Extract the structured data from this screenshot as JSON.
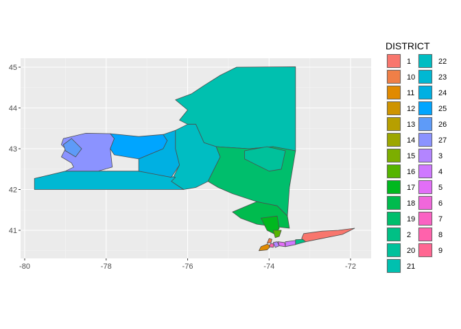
{
  "chart_data": {
    "type": "map",
    "legend": {
      "title": "DISTRICT",
      "placement": "right",
      "columns": 2,
      "entries": [
        {
          "label": "1",
          "color": "#F8766D"
        },
        {
          "label": "10",
          "color": "#EF7F47"
        },
        {
          "label": "11",
          "color": "#E18A00"
        },
        {
          "label": "12",
          "color": "#CE9400"
        },
        {
          "label": "13",
          "color": "#B79F00"
        },
        {
          "label": "14",
          "color": "#9CA700"
        },
        {
          "label": "15",
          "color": "#7CAE00"
        },
        {
          "label": "16",
          "color": "#55B400"
        },
        {
          "label": "17",
          "color": "#00B81F"
        },
        {
          "label": "18",
          "color": "#00BB4E"
        },
        {
          "label": "19",
          "color": "#00BE6C"
        },
        {
          "label": "2",
          "color": "#00C085"
        },
        {
          "label": "20",
          "color": "#00C19B"
        },
        {
          "label": "21",
          "color": "#00C0AF"
        },
        {
          "label": "22",
          "color": "#00BDC2"
        },
        {
          "label": "23",
          "color": "#00B8D3"
        },
        {
          "label": "24",
          "color": "#00B0E2"
        },
        {
          "label": "25",
          "color": "#00A5FF"
        },
        {
          "label": "26",
          "color": "#5E9BF8"
        },
        {
          "label": "27",
          "color": "#8B93FF"
        },
        {
          "label": "3",
          "color": "#B385FF"
        },
        {
          "label": "4",
          "color": "#CF78FF"
        },
        {
          "label": "5",
          "color": "#E26EF7"
        },
        {
          "label": "6",
          "color": "#F067DB"
        },
        {
          "label": "7",
          "color": "#FA62C3"
        },
        {
          "label": "8",
          "color": "#FF62AC"
        },
        {
          "label": "9",
          "color": "#FF6692"
        }
      ]
    },
    "x_ticks": [
      -80,
      -78,
      -76,
      -74,
      -72
    ],
    "y_ticks": [
      41,
      42,
      43,
      44,
      45
    ],
    "xlim": [
      -80.2,
      -71.5
    ],
    "ylim": [
      40.35,
      45.15
    ],
    "grid": true,
    "districts": [
      {
        "district": "21",
        "color": "#00C0AF",
        "coords": [
          [
            -76.2,
            43.7
          ],
          [
            -76.0,
            43.95
          ],
          [
            -76.3,
            44.2
          ],
          [
            -75.9,
            44.35
          ],
          [
            -75.6,
            44.55
          ],
          [
            -75.2,
            44.8
          ],
          [
            -74.8,
            45.0
          ],
          [
            -73.35,
            45.01
          ],
          [
            -73.35,
            42.95
          ],
          [
            -73.9,
            43.05
          ],
          [
            -74.5,
            43.0
          ],
          [
            -75.3,
            43.05
          ],
          [
            -75.6,
            43.15
          ],
          [
            -75.8,
            43.6
          ],
          [
            -76.0,
            43.6
          ]
        ]
      },
      {
        "district": "22",
        "color": "#00BDC2",
        "coords": [
          [
            -76.3,
            43.45
          ],
          [
            -76.0,
            43.6
          ],
          [
            -75.8,
            43.6
          ],
          [
            -75.6,
            43.15
          ],
          [
            -75.3,
            43.05
          ],
          [
            -75.2,
            42.8
          ],
          [
            -75.5,
            42.2
          ],
          [
            -75.8,
            42.05
          ],
          [
            -76.1,
            42.0
          ],
          [
            -76.4,
            42.2
          ],
          [
            -76.2,
            42.6
          ],
          [
            -76.3,
            43.0
          ]
        ]
      },
      {
        "district": "19",
        "color": "#00BE6C",
        "coords": [
          [
            -75.3,
            43.05
          ],
          [
            -74.5,
            43.0
          ],
          [
            -73.9,
            43.05
          ],
          [
            -73.35,
            42.95
          ],
          [
            -73.5,
            42.05
          ],
          [
            -73.55,
            41.35
          ],
          [
            -73.8,
            41.6
          ],
          [
            -74.3,
            41.7
          ],
          [
            -74.9,
            41.9
          ],
          [
            -75.25,
            42.05
          ],
          [
            -75.5,
            42.2
          ],
          [
            -75.2,
            42.8
          ]
        ]
      },
      {
        "district": "20",
        "color": "#00C19B",
        "coords": [
          [
            -74.6,
            42.95
          ],
          [
            -74.05,
            43.05
          ],
          [
            -73.6,
            42.95
          ],
          [
            -73.7,
            42.5
          ],
          [
            -74.0,
            42.45
          ],
          [
            -74.3,
            42.6
          ],
          [
            -74.6,
            42.75
          ]
        ]
      },
      {
        "district": "18",
        "color": "#00BB4E",
        "coords": [
          [
            -74.9,
            41.45
          ],
          [
            -74.3,
            41.7
          ],
          [
            -73.8,
            41.6
          ],
          [
            -73.55,
            41.35
          ],
          [
            -73.5,
            41.05
          ],
          [
            -73.95,
            41.1
          ],
          [
            -74.3,
            41.15
          ],
          [
            -74.7,
            41.3
          ]
        ]
      },
      {
        "district": "17",
        "color": "#00B81F",
        "coords": [
          [
            -74.2,
            41.3
          ],
          [
            -73.8,
            41.35
          ],
          [
            -73.75,
            41.05
          ],
          [
            -73.85,
            40.9
          ],
          [
            -74.05,
            41.0
          ]
        ]
      },
      {
        "district": "16",
        "color": "#55B400",
        "coords": [
          [
            -73.9,
            41.0
          ],
          [
            -73.7,
            41.0
          ],
          [
            -73.75,
            40.85
          ],
          [
            -73.85,
            40.82
          ]
        ]
      },
      {
        "district": "11",
        "color": "#E18A00",
        "coords": [
          [
            -74.25,
            40.5
          ],
          [
            -74.05,
            40.52
          ],
          [
            -73.95,
            40.62
          ],
          [
            -74.05,
            40.66
          ],
          [
            -74.2,
            40.6
          ]
        ]
      },
      {
        "district": "10",
        "color": "#EF7F47",
        "coords": [
          [
            -74.05,
            40.68
          ],
          [
            -73.95,
            40.7
          ],
          [
            -73.93,
            40.78
          ],
          [
            -74.0,
            40.8
          ]
        ]
      },
      {
        "district": "8",
        "color": "#FF62AC",
        "coords": [
          [
            -74.0,
            40.6
          ],
          [
            -73.9,
            40.58
          ],
          [
            -73.88,
            40.66
          ],
          [
            -73.96,
            40.68
          ]
        ]
      },
      {
        "district": "3",
        "color": "#B385FF",
        "coords": [
          [
            -73.85,
            40.58
          ],
          [
            -73.75,
            40.62
          ],
          [
            -73.8,
            40.72
          ],
          [
            -73.9,
            40.7
          ]
        ]
      },
      {
        "district": "5",
        "color": "#E26EF7",
        "coords": [
          [
            -73.75,
            40.62
          ],
          [
            -73.6,
            40.6
          ],
          [
            -73.62,
            40.7
          ],
          [
            -73.78,
            40.72
          ]
        ]
      },
      {
        "district": "4",
        "color": "#CF78FF",
        "coords": [
          [
            -73.6,
            40.6
          ],
          [
            -73.35,
            40.65
          ],
          [
            -73.35,
            40.75
          ],
          [
            -73.6,
            40.72
          ]
        ]
      },
      {
        "district": "2",
        "color": "#00C085",
        "coords": [
          [
            -73.35,
            40.65
          ],
          [
            -73.1,
            40.72
          ],
          [
            -73.15,
            40.78
          ],
          [
            -73.35,
            40.77
          ]
        ]
      },
      {
        "district": "1",
        "color": "#F8766D",
        "coords": [
          [
            -73.1,
            40.72
          ],
          [
            -72.6,
            40.82
          ],
          [
            -72.2,
            40.9
          ],
          [
            -71.9,
            41.05
          ],
          [
            -72.3,
            41.0
          ],
          [
            -72.7,
            40.98
          ],
          [
            -73.15,
            40.92
          ],
          [
            -73.2,
            40.8
          ]
        ]
      },
      {
        "district": "23",
        "color": "#00B8D3",
        "coords": [
          [
            -79.76,
            42.0
          ],
          [
            -76.1,
            42.0
          ],
          [
            -76.4,
            42.2
          ],
          [
            -76.3,
            42.3
          ],
          [
            -77.2,
            42.45
          ],
          [
            -77.8,
            42.45
          ],
          [
            -78.2,
            42.45
          ],
          [
            -79.0,
            42.45
          ],
          [
            -79.76,
            42.27
          ]
        ]
      },
      {
        "district": "27",
        "color": "#8B93FF",
        "coords": [
          [
            -79.05,
            43.25
          ],
          [
            -78.5,
            43.38
          ],
          [
            -77.9,
            43.37
          ],
          [
            -77.8,
            43.25
          ],
          [
            -77.9,
            43.0
          ],
          [
            -77.85,
            42.55
          ],
          [
            -78.2,
            42.45
          ],
          [
            -79.0,
            42.45
          ],
          [
            -78.8,
            42.55
          ],
          [
            -78.85,
            42.65
          ],
          [
            -79.1,
            42.8
          ],
          [
            -79.0,
            43.0
          ],
          [
            -79.1,
            43.1
          ]
        ]
      },
      {
        "district": "25",
        "color": "#00A5FF",
        "coords": [
          [
            -77.9,
            43.37
          ],
          [
            -77.2,
            43.3
          ],
          [
            -76.6,
            43.35
          ],
          [
            -76.5,
            43.2
          ],
          [
            -76.6,
            43.0
          ],
          [
            -77.2,
            42.75
          ],
          [
            -77.8,
            42.85
          ],
          [
            -77.9,
            43.0
          ],
          [
            -77.8,
            43.25
          ]
        ]
      },
      {
        "district": "24",
        "color": "#00B0E2",
        "coords": [
          [
            -76.6,
            43.35
          ],
          [
            -76.3,
            43.45
          ],
          [
            -76.3,
            43.0
          ],
          [
            -76.2,
            42.6
          ],
          [
            -76.4,
            42.3
          ],
          [
            -77.2,
            42.45
          ],
          [
            -77.2,
            42.75
          ],
          [
            -76.6,
            43.0
          ],
          [
            -76.5,
            43.2
          ]
        ]
      },
      {
        "district": "26",
        "color": "#5E9BF8",
        "coords": [
          [
            -79.05,
            43.1
          ],
          [
            -78.85,
            43.25
          ],
          [
            -78.6,
            43.0
          ],
          [
            -78.75,
            42.8
          ],
          [
            -79.0,
            42.95
          ]
        ]
      }
    ]
  }
}
